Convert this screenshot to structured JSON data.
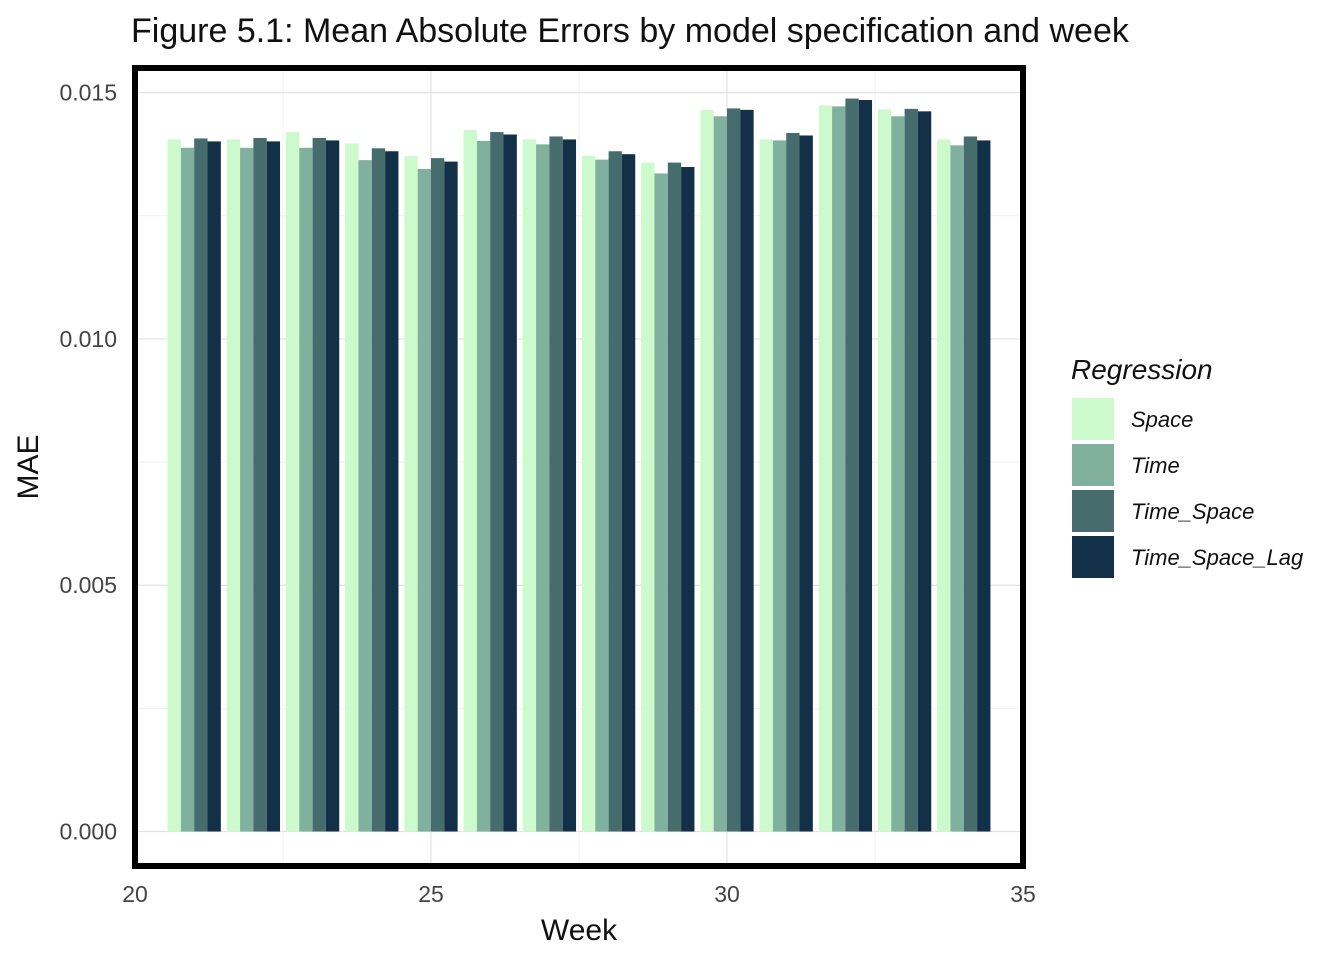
{
  "chart_data": {
    "type": "bar",
    "title": "Figure 5.1: Mean Absolute Errors by model specification and week",
    "xlabel": "Week",
    "ylabel": "MAE",
    "xlim": [
      20,
      35
    ],
    "ylim": [
      -0.0007,
      0.0155
    ],
    "x_ticks": [
      20,
      25,
      30,
      35
    ],
    "x_tick_labels": [
      "20",
      "25",
      "30",
      "35"
    ],
    "y_ticks": [
      0.0,
      0.005,
      0.01,
      0.015
    ],
    "y_tick_labels": [
      "0.000",
      "0.005",
      "0.010",
      "0.015"
    ],
    "grid": true,
    "legend": {
      "title": "Regression",
      "position": "right"
    },
    "x": [
      21,
      22,
      23,
      24,
      25,
      26,
      27,
      28,
      29,
      30,
      31,
      32,
      33,
      34
    ],
    "series": [
      {
        "name": "Space",
        "color": "#ccfacc",
        "values": [
          0.01405,
          0.01405,
          0.0142,
          0.01397,
          0.01371,
          0.01424,
          0.01405,
          0.01372,
          0.01358,
          0.01465,
          0.01405,
          0.01474,
          0.01466,
          0.01405
        ]
      },
      {
        "name": "Time",
        "color": "#82b09e",
        "values": [
          0.01388,
          0.01388,
          0.01388,
          0.01363,
          0.01345,
          0.01402,
          0.01395,
          0.01364,
          0.01336,
          0.01452,
          0.01403,
          0.01472,
          0.01452,
          0.01393
        ]
      },
      {
        "name": "Time_Space",
        "color": "#466c6e",
        "values": [
          0.01407,
          0.01408,
          0.01408,
          0.01387,
          0.01367,
          0.0142,
          0.01411,
          0.01381,
          0.01358,
          0.01468,
          0.01418,
          0.01488,
          0.01467,
          0.01411
        ]
      },
      {
        "name": "Time_Space_Lag",
        "color": "#123048",
        "values": [
          0.01401,
          0.01401,
          0.01403,
          0.01381,
          0.0136,
          0.01415,
          0.01405,
          0.01375,
          0.01349,
          0.01465,
          0.01413,
          0.01485,
          0.01462,
          0.01403
        ]
      }
    ]
  }
}
